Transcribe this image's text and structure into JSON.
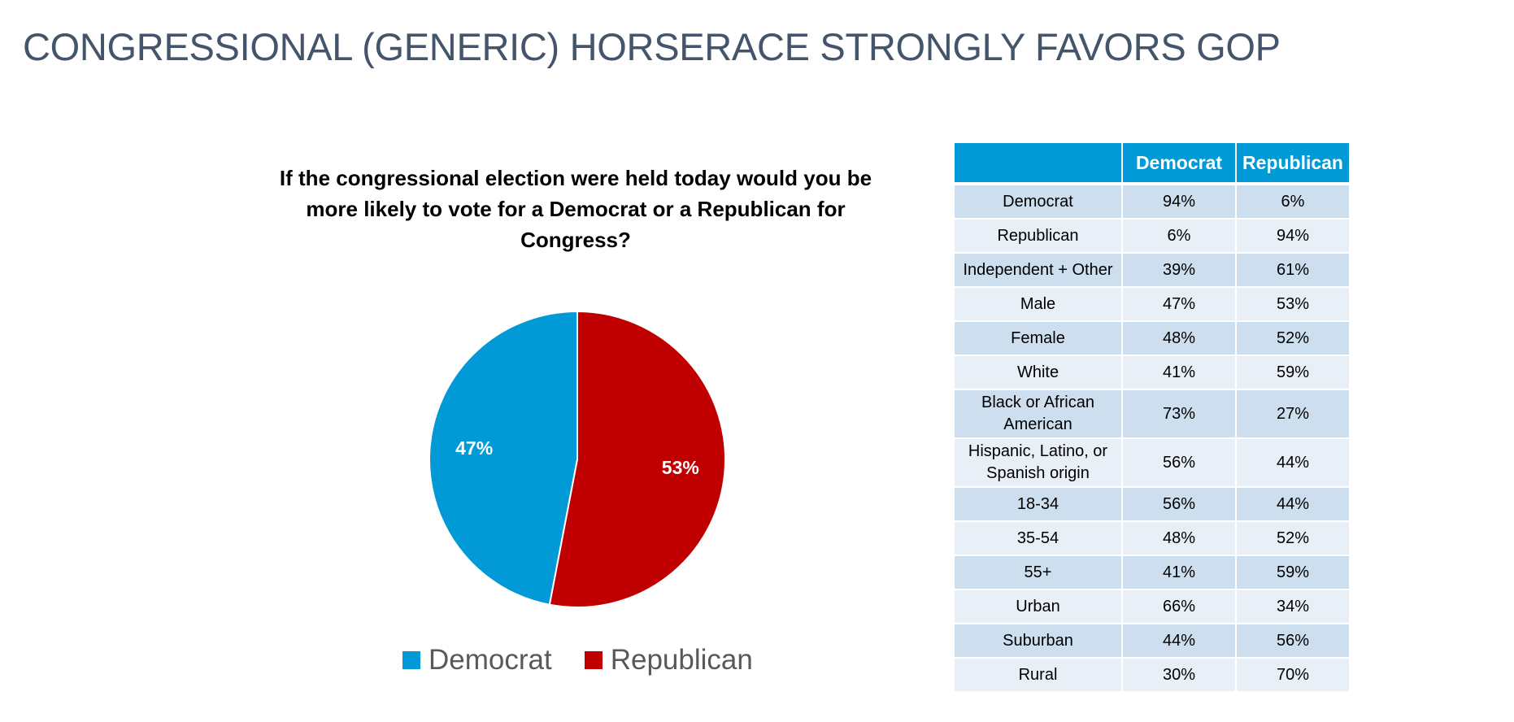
{
  "page": {
    "title": "CONGRESSIONAL (GENERIC) HORSERACE STRONGLY FAVORS GOP"
  },
  "chart_data": {
    "type": "pie",
    "title": "If the congressional election were held today would you be more likely to vote for a Democrat or a Republican for Congress?",
    "slices": [
      {
        "name": "Democrat",
        "value": 47,
        "label": "47%",
        "color": "#019ad6"
      },
      {
        "name": "Republican",
        "value": 53,
        "label": "53%",
        "color": "#c00000"
      }
    ],
    "legend": [
      "Democrat",
      "Republican"
    ],
    "legend_position": "bottom"
  },
  "table": {
    "headers": [
      "",
      "Democrat",
      "Republican"
    ],
    "rows": [
      {
        "label": "Democrat",
        "democrat": "94%",
        "republican": "6%"
      },
      {
        "label": "Republican",
        "democrat": "6%",
        "republican": "94%"
      },
      {
        "label": "Independent + Other",
        "democrat": "39%",
        "republican": "61%"
      },
      {
        "label": "Male",
        "democrat": "47%",
        "republican": "53%"
      },
      {
        "label": "Female",
        "democrat": "48%",
        "republican": "52%"
      },
      {
        "label": "White",
        "democrat": "41%",
        "republican": "59%"
      },
      {
        "label": "Black or African American",
        "democrat": "73%",
        "republican": "27%"
      },
      {
        "label": "Hispanic, Latino, or Spanish origin",
        "democrat": "56%",
        "republican": "44%"
      },
      {
        "label": "18-34",
        "democrat": "56%",
        "republican": "44%"
      },
      {
        "label": "35-54",
        "democrat": "48%",
        "republican": "52%"
      },
      {
        "label": "55+",
        "democrat": "41%",
        "republican": "59%"
      },
      {
        "label": "Urban",
        "democrat": "66%",
        "republican": "34%"
      },
      {
        "label": "Suburban",
        "democrat": "44%",
        "republican": "56%"
      },
      {
        "label": "Rural",
        "democrat": "30%",
        "republican": "70%"
      }
    ]
  }
}
